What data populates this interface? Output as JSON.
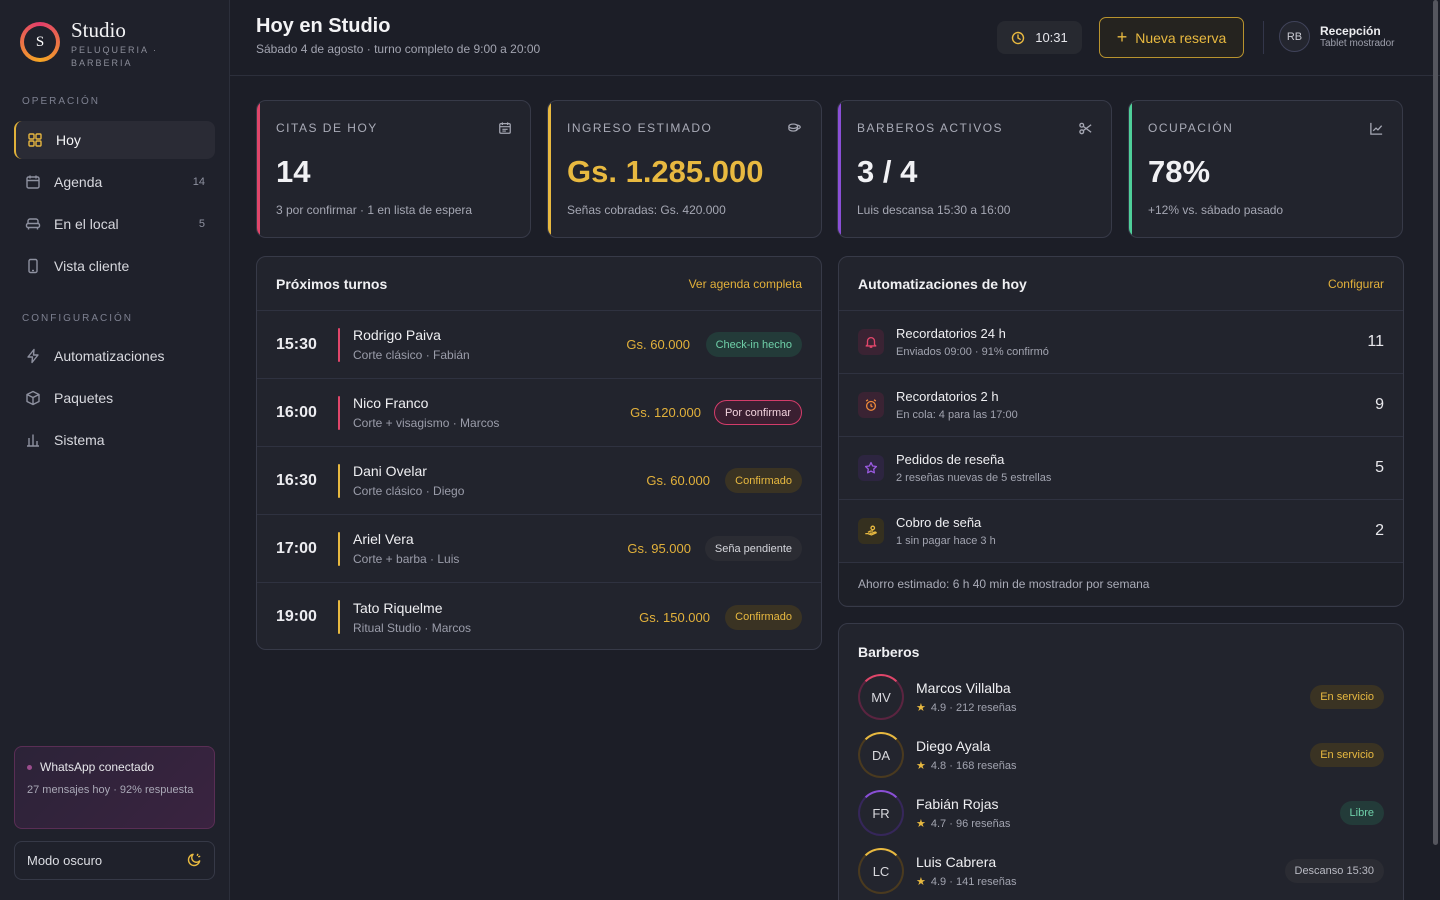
{
  "brand": {
    "name": "Studio",
    "subtitle": "PELUQUERIA · BARBERIA",
    "logo_letter": "S"
  },
  "nav": {
    "section_operacion": "OPERACIÓN",
    "section_config": "CONFIGURACIÓN",
    "items": [
      {
        "label": "Hoy",
        "icon": "grid-icon",
        "count": ""
      },
      {
        "label": "Agenda",
        "icon": "calendar-icon",
        "count": "14"
      },
      {
        "label": "En el local",
        "icon": "armchair-icon",
        "count": "5"
      },
      {
        "label": "Vista cliente",
        "icon": "phone-icon",
        "count": ""
      },
      {
        "label": "Automatizaciones",
        "icon": "bolt-icon",
        "count": ""
      },
      {
        "label": "Paquetes",
        "icon": "box-icon",
        "count": ""
      },
      {
        "label": "Sistema",
        "icon": "chart-icon",
        "count": ""
      }
    ]
  },
  "whatsapp": {
    "title": "WhatsApp conectado",
    "text": "27 mensajes hoy · 92% respuesta"
  },
  "darkmode": {
    "label": "Modo oscuro"
  },
  "header": {
    "title": "Hoy en Studio",
    "subtitle": "Sábado 4 de agosto · turno completo de 9:00 a 20:00",
    "time": "10:31",
    "new_button": "Nueva reserva",
    "user_initials": "RB",
    "user_name": "Recepción",
    "user_role": "Tablet mostrador"
  },
  "kpis": [
    {
      "label": "CITAS DE HOY",
      "value": "14",
      "note": "3 por confirmar · 1 en lista de espera",
      "accent": "#e0466a",
      "icon": "calendar-icon"
    },
    {
      "label": "INGRESO ESTIMADO",
      "value": "Gs. 1.285.000",
      "note": "Señas cobradas: Gs. 420.000",
      "accent": "#e8b940",
      "icon": "coins-icon"
    },
    {
      "label": "BARBEROS ACTIVOS",
      "value": "3 / 4",
      "note": "Luis descansa 15:30 a 16:00",
      "accent": "#8a4fd6",
      "icon": "scissors-icon"
    },
    {
      "label": "OCUPACIÓN",
      "value": "78%",
      "note": "+12% vs. sábado pasado",
      "accent": "#4fcf9a",
      "icon": "trend-icon"
    }
  ],
  "turnos": {
    "title": "Próximos turnos",
    "link": "Ver agenda completa",
    "items": [
      {
        "time": "15:30",
        "name": "Rodrigo Paiva",
        "detail": "Corte clásico · Fabián",
        "price": "Gs. 60.000",
        "status": "Check-in hecho",
        "bar": "#e0466a"
      },
      {
        "time": "16:00",
        "name": "Nico Franco",
        "detail": "Corte + visagismo · Marcos",
        "price": "Gs. 120.000",
        "status": "Por confirmar",
        "bar": "#e0466a"
      },
      {
        "time": "16:30",
        "name": "Dani Ovelar",
        "detail": "Corte clásico · Diego",
        "price": "Gs. 60.000",
        "status": "Confirmado",
        "bar": "#e8b940"
      },
      {
        "time": "17:00",
        "name": "Ariel Vera",
        "detail": "Corte + barba · Luis",
        "price": "Gs. 95.000",
        "status": "Seña pendiente",
        "bar": "#e8b940"
      },
      {
        "time": "19:00",
        "name": "Tato Riquelme",
        "detail": "Ritual Studio · Marcos",
        "price": "Gs. 150.000",
        "status": "Confirmado",
        "bar": "#e8b940"
      }
    ]
  },
  "automatizaciones": {
    "title": "Automatizaciones de hoy",
    "link": "Configurar",
    "items": [
      {
        "title": "Recordatorios 24 h",
        "sub": "Enviados 09:00 · 91% confirmó",
        "count": "11",
        "icon": "bell-icon"
      },
      {
        "title": "Recordatorios 2 h",
        "sub": "En cola: 4 para las 17:00",
        "count": "9",
        "icon": "alarm-icon"
      },
      {
        "title": "Pedidos de reseña",
        "sub": "2 reseñas nuevas de 5 estrellas",
        "count": "5",
        "icon": "star-icon"
      },
      {
        "title": "Cobro de seña",
        "sub": "1 sin pagar hace 3 h",
        "count": "2",
        "icon": "hand-coin-icon"
      }
    ],
    "footer": "Ahorro estimado: 6 h 40 min de mostrador por semana"
  },
  "barberos": {
    "title": "Barberos",
    "items": [
      {
        "initials": "MV",
        "name": "Marcos Villalba",
        "rating": "4.9",
        "reviews": "212",
        "reviews_label": "reseñas",
        "status": "En servicio"
      },
      {
        "initials": "DA",
        "name": "Diego Ayala",
        "rating": "4.8",
        "reviews": "168",
        "reviews_label": "reseñas",
        "status": "En servicio"
      },
      {
        "initials": "FR",
        "name": "Fabián Rojas",
        "rating": "4.7",
        "reviews": "96",
        "reviews_label": "reseñas",
        "status": "Libre"
      },
      {
        "initials": "LC",
        "name": "Luis Cabrera",
        "rating": "4.9",
        "reviews": "141",
        "reviews_label": "reseñas",
        "status": "Descanso 15:30"
      }
    ]
  },
  "colors": {
    "accent": "#e8b940",
    "pink": "#e0466a",
    "purple": "#8a4fd6",
    "green": "#4fcf9a"
  }
}
